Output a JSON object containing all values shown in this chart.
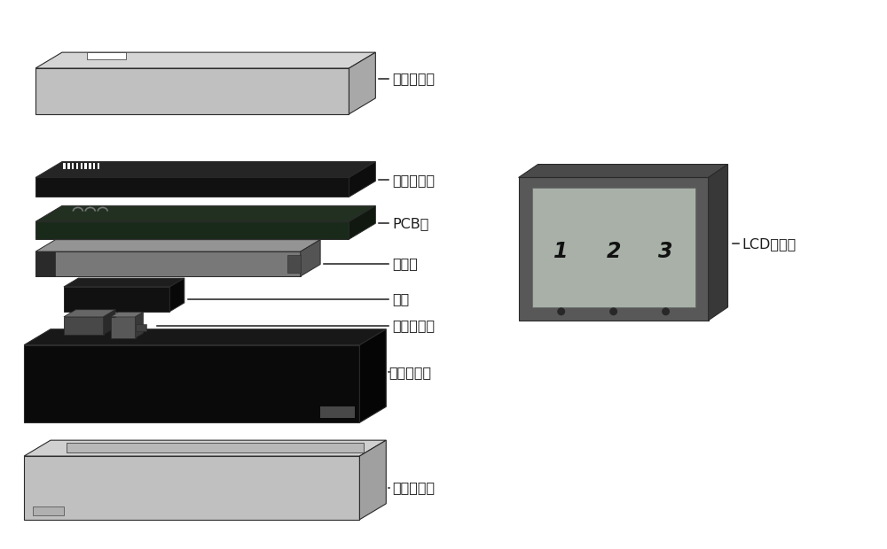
{
  "background_color": "#ffffff",
  "labels": {
    "outer_top": "外壳（顶）",
    "inner_top": "内壳（顶）",
    "pcb": "PCB板",
    "laser": "激光器",
    "power": "电源",
    "fan": "风扇及马达",
    "inner_bottom": "内壳（底）",
    "outer_bottom": "外壳（底）",
    "lcd": "LCD显示屏"
  },
  "colors": {
    "light_gray": "#c0c0c0",
    "dark_gray": "#555555",
    "near_black": "#111111",
    "black": "#080808",
    "mid_gray": "#888888",
    "lcd_frame": "#585858",
    "lcd_bg": "#a8b0a8",
    "white": "#ffffff",
    "outline": "#2a2a2a",
    "top_highlight": "#d8d8d8",
    "side_shadow": "#909090"
  }
}
